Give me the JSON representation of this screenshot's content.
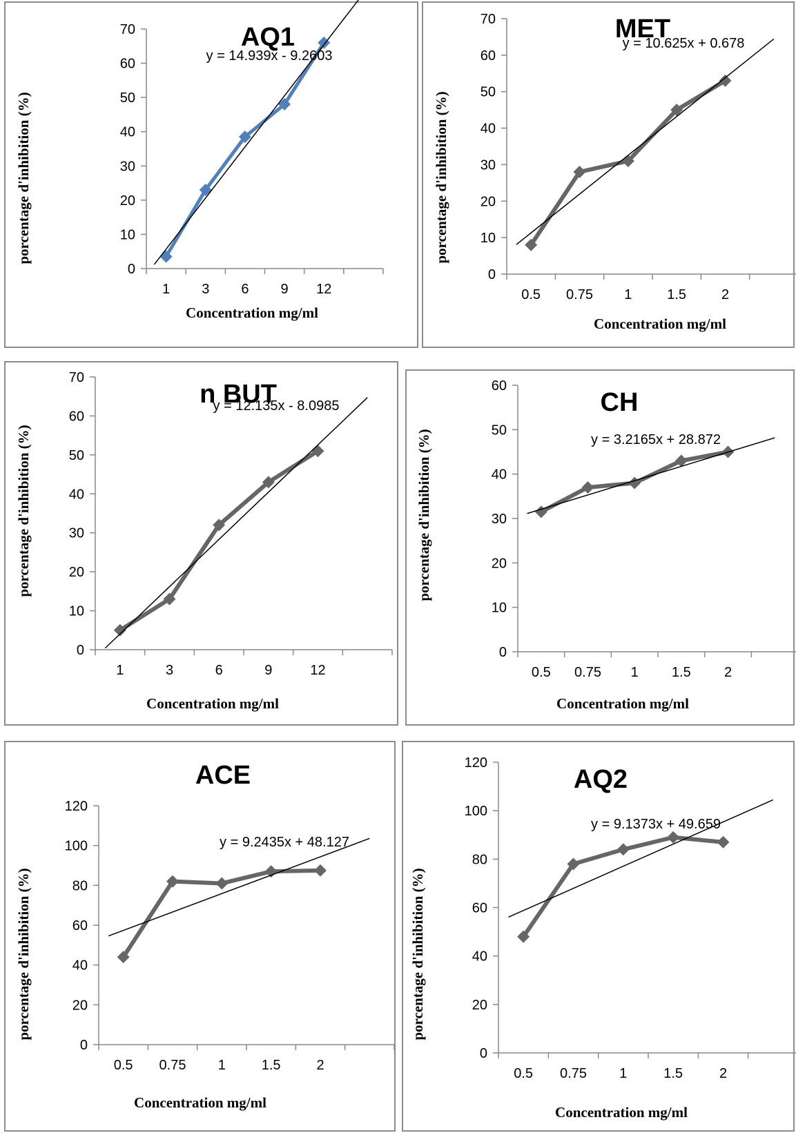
{
  "colors": {
    "blue_series": "#4f81bd",
    "gray_series": "#666666",
    "trendline": "#000000",
    "border": "#8c8c8c"
  },
  "chart_data": [
    {
      "type": "line",
      "title": "AQ1",
      "xlabel": "Concentration  mg/ml",
      "ylabel": "porcentage  d'inhibition  (%)",
      "categories": [
        "1",
        "3",
        "6",
        "9",
        "12"
      ],
      "ylim": [
        0,
        70
      ],
      "yticks": [
        "0",
        "10",
        "20",
        "30",
        "40",
        "50",
        "60",
        "70"
      ],
      "series": [
        {
          "values": [
            3.5,
            23,
            38.5,
            48,
            66
          ]
        }
      ],
      "trendline": {
        "slope": 14.939,
        "intercept": -9.2603,
        "equation": "y = 14.939x - 9.2603"
      }
    },
    {
      "type": "line",
      "title": "MET",
      "xlabel": "Concentration  mg/ml",
      "ylabel": "porcentage  d'inhibition  (%)",
      "categories": [
        "0.5",
        "0.75",
        "1",
        "1.5",
        "2"
      ],
      "ylim": [
        0,
        70
      ],
      "yticks": [
        "0",
        "10",
        "20",
        "30",
        "40",
        "50",
        "60",
        "70"
      ],
      "series": [
        {
          "values": [
            8,
            28,
            31,
            45,
            53
          ]
        }
      ],
      "trendline": {
        "slope": 10.625,
        "intercept": 0.678,
        "equation": "y = 10.625x + 0.678"
      }
    },
    {
      "type": "line",
      "title": "n BUT",
      "xlabel": "Concentration  mg/ml",
      "ylabel": "porcentage  d'inhibition  (%)",
      "categories": [
        "1",
        "3",
        "6",
        "9",
        "12"
      ],
      "ylim": [
        0,
        70
      ],
      "yticks": [
        "0",
        "10",
        "20",
        "30",
        "40",
        "50",
        "60",
        "70"
      ],
      "series": [
        {
          "values": [
            5,
            13,
            32,
            43,
            51
          ]
        }
      ],
      "trendline": {
        "slope": 12.135,
        "intercept": -8.0985,
        "equation": "y = 12.135x - 8.0985"
      }
    },
    {
      "type": "line",
      "title": "CH",
      "xlabel": "Concentration  mg/ml",
      "ylabel": "porcentage  d'inhibition  (%)",
      "categories": [
        "0.5",
        "0.75",
        "1",
        "1.5",
        "2"
      ],
      "ylim": [
        0,
        60
      ],
      "yticks": [
        "0",
        "10",
        "20",
        "30",
        "40",
        "50",
        "60"
      ],
      "series": [
        {
          "values": [
            31.5,
            37,
            38,
            43,
            45
          ]
        }
      ],
      "trendline": {
        "slope": 3.2165,
        "intercept": 28.872,
        "equation": "y = 3.2165x + 28.872"
      }
    },
    {
      "type": "line",
      "title": "ACE",
      "xlabel": "Concentration  mg/ml",
      "ylabel": "porcentage  d'inhibition  (%)",
      "categories": [
        "0.5",
        "0.75",
        "1",
        "1.5",
        "2"
      ],
      "ylim": [
        0,
        120
      ],
      "yticks": [
        "0",
        "20",
        "40",
        "60",
        "80",
        "100",
        "120"
      ],
      "series": [
        {
          "values": [
            44,
            82,
            81,
            87,
            87.5
          ]
        }
      ],
      "trendline": {
        "slope": 9.2435,
        "intercept": 48.127,
        "equation": "y = 9.2435x + 48.127"
      }
    },
    {
      "type": "line",
      "title": "AQ2",
      "xlabel": "Concentration  mg/ml",
      "ylabel": "porcentage  d'inhibition  (%)",
      "categories": [
        "0.5",
        "0.75",
        "1",
        "1.5",
        "2"
      ],
      "ylim": [
        0,
        120
      ],
      "yticks": [
        "0",
        "20",
        "40",
        "60",
        "80",
        "100",
        "120"
      ],
      "series": [
        {
          "values": [
            48,
            78,
            84,
            89,
            87
          ]
        }
      ],
      "trendline": {
        "slope": 9.1373,
        "intercept": 49.659,
        "equation": "y = 9.1373x + 49.659"
      }
    }
  ]
}
